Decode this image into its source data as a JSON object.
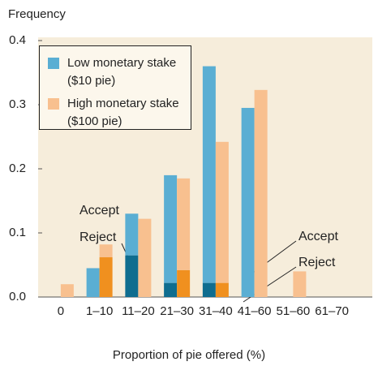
{
  "chart_data": {
    "type": "grouped_stacked_bar",
    "y_label": "Frequency",
    "x_label": "Proportion of pie offered (%)",
    "categories": [
      "0",
      "1–10",
      "11–20",
      "21–30",
      "31–40",
      "41–60",
      "51–60",
      "61–70"
    ],
    "ylim": [
      0,
      0.4
    ],
    "yticks": [
      {
        "value": 0,
        "label": "0.0"
      },
      0.1,
      0.2,
      0.3,
      0.4
    ],
    "series": [
      {
        "name": "Low monetary stake ($10 pie)",
        "color": "#5aaed3",
        "reject_color": "#0f6d8f",
        "reject": [
          0,
          0,
          0.065,
          0.022,
          0.022,
          0,
          0,
          0
        ],
        "accept": [
          0,
          0.045,
          0.065,
          0.168,
          0.338,
          0.295,
          0,
          0
        ]
      },
      {
        "name": "High monetary stake ($100 pie)",
        "color": "#f8c08f",
        "reject_color": "#f0901f",
        "reject": [
          0,
          0.062,
          0,
          0.042,
          0.022,
          0,
          0,
          0
        ],
        "accept": [
          0.02,
          0.02,
          0.122,
          0.143,
          0.22,
          0.323,
          0.04,
          0
        ]
      }
    ],
    "annotations": [
      "Accept",
      "Reject",
      "Accept",
      "Reject"
    ]
  }
}
